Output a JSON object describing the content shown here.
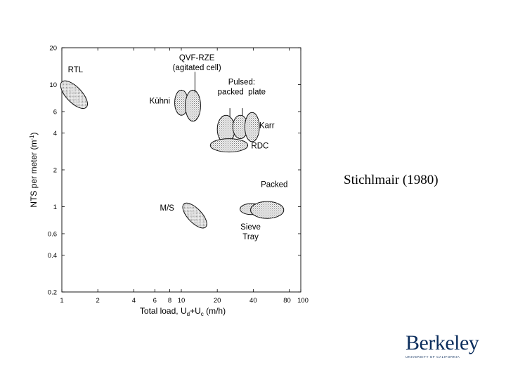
{
  "caption": "Stichlmair (1980)",
  "logo": {
    "word": "Berkeley",
    "subtitle": "UNIVERSITY OF CALIFORNIA"
  },
  "colors": {
    "ellipse_fill": "#e4e4e4",
    "ellipse_stroke": "#111111",
    "logo": "#0b2d5c"
  },
  "chart_data": {
    "type": "scatter",
    "title": "",
    "xlabel_parts": [
      "Total load, U",
      "d",
      "+U",
      "c",
      " (m/h)"
    ],
    "ylabel_parts": [
      "NTS per meter (m",
      "-1",
      ")"
    ],
    "x_scale": "log",
    "y_scale": "log",
    "xlim": [
      1,
      100
    ],
    "ylim": [
      0.2,
      20
    ],
    "x_ticks": [
      {
        "value": 1,
        "label": "1"
      },
      {
        "value": 2,
        "label": "2"
      },
      {
        "value": 4,
        "label": "4"
      },
      {
        "value": 6,
        "label": "6"
      },
      {
        "value": 8,
        "label": "8"
      },
      {
        "value": 10,
        "label": "10"
      },
      {
        "value": 20,
        "label": "20"
      },
      {
        "value": 40,
        "label": "40"
      },
      {
        "value": 80,
        "label": "80"
      },
      {
        "value": 100,
        "label": "100"
      }
    ],
    "y_ticks": [
      {
        "value": 0.2,
        "label": "0.2"
      },
      {
        "value": 0.4,
        "label": "0.4"
      },
      {
        "value": 0.6,
        "label": "0.6"
      },
      {
        "value": 1,
        "label": "1"
      },
      {
        "value": 2,
        "label": "2"
      },
      {
        "value": 4,
        "label": "4"
      },
      {
        "value": 6,
        "label": "6"
      },
      {
        "value": 10,
        "label": "10"
      },
      {
        "value": 20,
        "label": "20"
      }
    ],
    "regions": [
      {
        "name": "rtl",
        "label": "RTL",
        "x_range": [
          1.0,
          1.6
        ],
        "y_range": [
          6.5,
          10.5
        ],
        "tilt": "down"
      },
      {
        "name": "kuhni",
        "label": "Kühni",
        "x_range": [
          8.8,
          11.4
        ],
        "y_range": [
          5.6,
          9.0
        ],
        "tilt": "none"
      },
      {
        "name": "qvf-rze",
        "label": "QVF-RZE (agitated cell)",
        "x_range": [
          10.8,
          14.5
        ],
        "y_range": [
          5.0,
          9.0
        ],
        "tilt": "none"
      },
      {
        "name": "pulsed-packed",
        "label": "Pulsed: packed",
        "x_range": [
          20.0,
          28.0
        ],
        "y_range": [
          3.3,
          5.6
        ],
        "tilt": "none"
      },
      {
        "name": "pulsed-plate",
        "label": "Pulsed: plate",
        "x_range": [
          27.0,
          36.0
        ],
        "y_range": [
          3.6,
          5.6
        ],
        "tilt": "none"
      },
      {
        "name": "karr",
        "label": "Karr",
        "x_range": [
          34.0,
          45.0
        ],
        "y_range": [
          3.4,
          5.9
        ],
        "tilt": "none"
      },
      {
        "name": "rdc",
        "label": "RDC",
        "x_range": [
          17.5,
          36.0
        ],
        "y_range": [
          2.8,
          3.6
        ],
        "tilt": "none"
      },
      {
        "name": "ms",
        "label": "M/S",
        "x_range": [
          10.5,
          16.0
        ],
        "y_range": [
          0.68,
          1.05
        ],
        "tilt": "down"
      },
      {
        "name": "sieve-tray",
        "label": "Sieve Tray",
        "x_range": [
          31.0,
          48.0
        ],
        "y_range": [
          0.86,
          1.06
        ],
        "tilt": "none"
      },
      {
        "name": "packed",
        "label": "Packed",
        "x_range": [
          38.0,
          72.0
        ],
        "y_range": [
          0.8,
          1.1
        ],
        "tilt": "none"
      }
    ],
    "annotations": [
      {
        "name": "rtl",
        "lines": [
          "RTL"
        ],
        "x": 1.3,
        "y": 12.6
      },
      {
        "name": "qvf-rze",
        "lines": [
          "QVF-RZE",
          "(agitated cell)"
        ],
        "x": 13.5,
        "y": 15.8
      },
      {
        "name": "kuhni",
        "lines": [
          "Kühni"
        ],
        "x": 6.6,
        "y": 7.0
      },
      {
        "name": "pulsed",
        "lines": [
          "Pulsed:",
          "packed  plate"
        ],
        "x": 32.0,
        "y": 10.0
      },
      {
        "name": "karr",
        "lines": [
          "Karr"
        ],
        "x": 52.0,
        "y": 4.4
      },
      {
        "name": "rdc",
        "lines": [
          "RDC"
        ],
        "x": 45.5,
        "y": 3.0
      },
      {
        "name": "packed",
        "lines": [
          "Packed"
        ],
        "x": 60.0,
        "y": 1.45
      },
      {
        "name": "ms",
        "lines": [
          "M/S"
        ],
        "x": 7.6,
        "y": 0.93
      },
      {
        "name": "sieve-tray",
        "lines": [
          "Sieve",
          "Tray"
        ],
        "x": 38.0,
        "y": 0.65
      }
    ],
    "leaders": [
      {
        "name": "qvf-rze",
        "from": [
          13.0,
          12.7
        ],
        "to": [
          13.0,
          8.6
        ]
      },
      {
        "name": "pulsed-packed",
        "from": [
          25.5,
          6.4
        ],
        "to": [
          25.5,
          5.5
        ]
      },
      {
        "name": "pulsed-plate",
        "from": [
          32.5,
          6.4
        ],
        "to": [
          32.5,
          5.5
        ]
      }
    ]
  }
}
